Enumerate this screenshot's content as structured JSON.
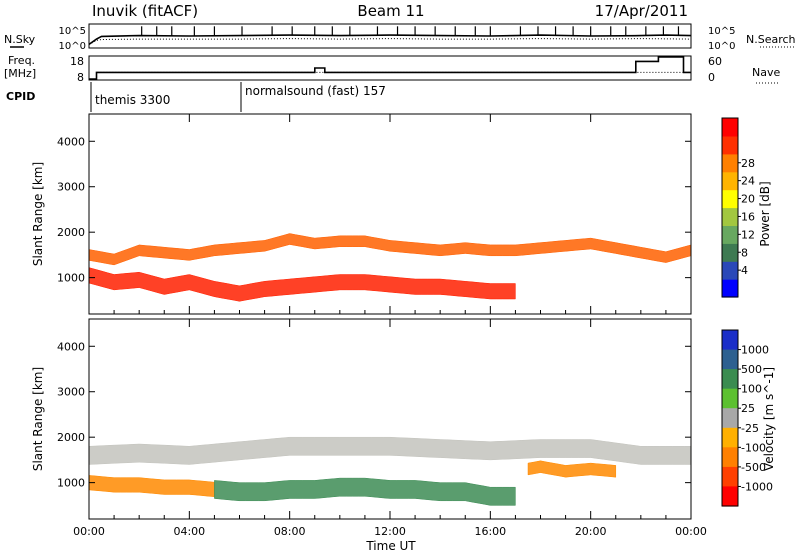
{
  "header": {
    "station": "Inuvik (fitACF)",
    "beam": "Beam 11",
    "date": "17/Apr/2011"
  },
  "panel_labels": {
    "nsky": "N.Sky",
    "nsearch": "N.Search",
    "freq_line1": "Freq.",
    "freq_line2": "[MHz]",
    "nave": "Nave",
    "cpid": "CPID",
    "nsky_ticks": [
      "10^5",
      "10^0"
    ],
    "nsearch_ticks": [
      "10^5",
      "10^0"
    ],
    "freq_ticks": [
      "18",
      "8"
    ],
    "nave_ticks": [
      "60",
      "0"
    ]
  },
  "cpid_modes": [
    {
      "label": "themis 3300",
      "start": 0
    },
    {
      "label": "normalsound (fast) 157",
      "start": 6
    }
  ],
  "x_axis": {
    "label": "Time UT",
    "ticks": [
      "00:00",
      "04:00",
      "08:00",
      "12:00",
      "16:00",
      "20:00",
      "00:00"
    ],
    "range_hours": [
      0,
      24
    ]
  },
  "chart_data": [
    {
      "type": "line",
      "name": "noise-panel",
      "series": [
        {
          "name": "N.Sky",
          "x": [
            0,
            0.3,
            0.5,
            2,
            4,
            6,
            8,
            10,
            12,
            14,
            16,
            17,
            18,
            20,
            22,
            23,
            24
          ],
          "y": [
            0.6,
            1.8,
            2.4,
            2.6,
            2.5,
            2.6,
            2.7,
            2.6,
            2.7,
            2.6,
            2.5,
            2.6,
            2.7,
            2.5,
            2.6,
            2.7,
            2.6
          ]
        },
        {
          "name": "N.Search",
          "x": [
            0,
            0.3,
            0.5,
            2,
            4,
            6,
            8,
            10,
            12,
            14,
            16,
            18,
            20,
            22,
            24
          ],
          "y": [
            0.6,
            1.5,
            1.7,
            1.8,
            1.8,
            1.8,
            1.9,
            1.8,
            1.9,
            1.8,
            1.8,
            1.9,
            1.8,
            1.9,
            1.8
          ]
        }
      ],
      "spike_times": [
        2.1,
        2.7,
        3.3,
        4.2,
        5.0,
        6.1,
        7.3,
        8.1,
        9.0,
        9.7,
        10.4,
        11.5,
        12.3,
        13.0,
        13.8,
        14.6,
        15.4,
        16.0,
        17.2,
        17.9,
        18.6,
        19.3,
        20.0,
        20.8,
        21.4,
        22.2,
        22.9,
        23.5
      ],
      "ylabel": "N.Sky",
      "y2label": "N.Search"
    },
    {
      "type": "line",
      "name": "frequency-nave-panel",
      "series": [
        {
          "name": "Freq.",
          "x": [
            0,
            0.3,
            0.3,
            9.0,
            9.0,
            9.4,
            9.4,
            17.0,
            17.0,
            21.8,
            21.8,
            22.7,
            22.7,
            23.7,
            23.7,
            24
          ],
          "y": [
            8,
            8,
            11,
            11,
            13,
            13,
            11,
            11,
            11,
            11,
            16,
            16,
            18,
            18,
            11,
            11
          ]
        },
        {
          "name": "Nave",
          "x": [
            0,
            0.3,
            0.3,
            24
          ],
          "y": [
            0,
            0,
            18,
            18
          ]
        }
      ],
      "ylim_freq": [
        8,
        18
      ],
      "ylim_nave": [
        0,
        60
      ]
    },
    {
      "type": "heatmap",
      "name": "power-panel",
      "ylabel": "Slant Range [km]",
      "yticks": [
        "1000",
        "2000",
        "3000",
        "4000"
      ],
      "ylim": [
        200,
        4600
      ],
      "colorbar": {
        "label": "Power [dB]",
        "tick_labels": [
          "4",
          "8",
          "12",
          "16",
          "20",
          "24",
          "28"
        ],
        "colors": [
          "#0000ff",
          "#2a48b8",
          "#3e7a52",
          "#68a860",
          "#a2c740",
          "#ffff00",
          "#ffb400",
          "#ff8000",
          "#ff3000",
          "#ff0000"
        ]
      },
      "bands": [
        {
          "name": "lower-echo",
          "times": [
            0,
            1,
            2,
            3,
            4,
            5,
            6,
            7,
            8,
            9,
            10,
            11,
            12,
            13,
            14,
            15,
            16,
            17
          ],
          "center": [
            1050,
            900,
            950,
            800,
            900,
            750,
            650,
            750,
            800,
            850,
            900,
            900,
            850,
            800,
            800,
            750,
            700,
            700
          ],
          "halfwidth": 170,
          "color": "#ff2000"
        },
        {
          "name": "upper-echo",
          "times": [
            0,
            1,
            2,
            3,
            4,
            5,
            6,
            7,
            8,
            9,
            10,
            11,
            12,
            13,
            14,
            15,
            16,
            17,
            18,
            19,
            20,
            21,
            22,
            23,
            24
          ],
          "center": [
            1500,
            1400,
            1600,
            1550,
            1500,
            1600,
            1650,
            1700,
            1850,
            1750,
            1800,
            1800,
            1700,
            1650,
            1600,
            1650,
            1600,
            1600,
            1650,
            1700,
            1750,
            1650,
            1550,
            1450,
            1600
          ],
          "halfwidth": 120,
          "color": "#ff6000"
        }
      ]
    },
    {
      "type": "heatmap",
      "name": "velocity-panel",
      "ylabel": "Slant Range [km]",
      "yticks": [
        "1000",
        "2000",
        "3000",
        "4000"
      ],
      "ylim": [
        200,
        4600
      ],
      "colorbar": {
        "label": "Velocity [m s^-1]",
        "tick_labels": [
          "1000",
          "500",
          "100",
          "25",
          "-25",
          "-100",
          "-500",
          "-1000"
        ],
        "colors": [
          "#1a2ec8",
          "#2d6090",
          "#3a8c50",
          "#5cc030",
          "#a8a8a8",
          "#ffb000",
          "#ff8000",
          "#ff4000",
          "#ff0000"
        ]
      },
      "bands": [
        {
          "name": "lower-echo-orange",
          "times": [
            0,
            1,
            2,
            3,
            4,
            5
          ],
          "center": [
            1000,
            950,
            950,
            900,
            900,
            850
          ],
          "halfwidth": 160,
          "color": "#ff8a00"
        },
        {
          "name": "lower-echo-green",
          "times": [
            5,
            6,
            7,
            8,
            9,
            10,
            11,
            12,
            13,
            14,
            15,
            16,
            17
          ],
          "center": [
            850,
            800,
            800,
            850,
            850,
            900,
            900,
            850,
            850,
            800,
            800,
            700,
            700
          ],
          "halfwidth": 200,
          "color": "#3d8c55"
        },
        {
          "name": "upper-echo-grey",
          "times": [
            0,
            2,
            4,
            6,
            8,
            10,
            12,
            14,
            16,
            18,
            20,
            22,
            24
          ],
          "center": [
            1600,
            1650,
            1600,
            1700,
            1800,
            1800,
            1800,
            1750,
            1700,
            1750,
            1750,
            1600,
            1600
          ],
          "halfwidth": 200,
          "color": "#c3c3bd"
        },
        {
          "name": "late-orange",
          "times": [
            17.5,
            18,
            19,
            20,
            21
          ],
          "center": [
            1300,
            1350,
            1250,
            1300,
            1250
          ],
          "halfwidth": 130,
          "color": "#ff8a00"
        }
      ]
    }
  ]
}
